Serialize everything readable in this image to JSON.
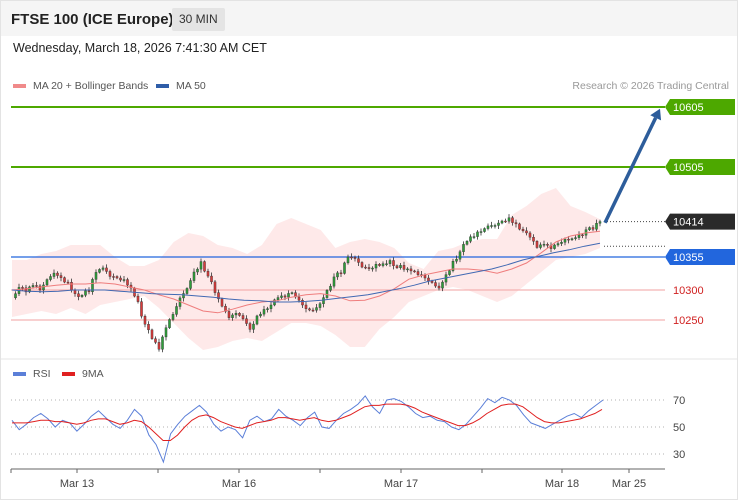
{
  "header": {
    "title": "FTSE 100 (ICE Europe)",
    "timeframe": "30 MIN"
  },
  "datetime": "Wednesday, March 18, 2026 7:41:30 AM CET",
  "legend": {
    "bollinger": "MA 20 + Bollinger Bands",
    "ma50": "MA 50",
    "rsi": "RSI",
    "rsi_ma": "9MA"
  },
  "credit": "Research © 2026 Trading Central",
  "colors": {
    "up": "#2e9e3a",
    "down": "#d83b3b",
    "bollinger_fill": "#fde2e2",
    "bollinger_line": "#ef7d7d",
    "ma50": "#4169b3",
    "target": "#4da800",
    "pivot": "#2266dd",
    "support": "#f1a2a2",
    "arrow": "#2d5d9b",
    "rsi": "#5b7fd8",
    "rsi_ma": "#e02020"
  },
  "chart_data": [
    {
      "type": "candlestick",
      "price_labels": [
        {
          "value": 10605,
          "label": "10605",
          "role": "target"
        },
        {
          "value": 10505,
          "label": "10505",
          "role": "target"
        },
        {
          "value": 10414,
          "label": "10414",
          "role": "last"
        },
        {
          "value": 10355,
          "label": "10355",
          "role": "pivot"
        },
        {
          "value": 10300,
          "label": "10300",
          "role": "support"
        },
        {
          "value": 10250,
          "label": "10250",
          "role": "support"
        }
      ],
      "ylim": [
        10200,
        10660
      ],
      "x_ticks": [
        "Mar 13",
        "Mar 16",
        "Mar 17",
        "Mar 18",
        "Mar 25"
      ],
      "close_path": [
        10290,
        10305,
        10295,
        10310,
        10300,
        10315,
        10330,
        10320,
        10310,
        10295,
        10290,
        10300,
        10330,
        10335,
        10325,
        10320,
        10315,
        10305,
        10280,
        10240,
        10220,
        10200,
        10240,
        10260,
        10285,
        10305,
        10330,
        10345,
        10325,
        10295,
        10270,
        10255,
        10260,
        10255,
        10235,
        10255,
        10270,
        10275,
        10285,
        10290,
        10295,
        10280,
        10270,
        10265,
        10280,
        10300,
        10320,
        10330,
        10355,
        10350,
        10340,
        10335,
        10340,
        10345,
        10348,
        10340,
        10335,
        10330,
        10328,
        10320,
        10310,
        10305,
        10325,
        10345,
        10365,
        10380,
        10392,
        10398,
        10405,
        10410,
        10415,
        10418,
        10412,
        10398,
        10385,
        10372,
        10375,
        10372,
        10378,
        10383,
        10388,
        10392,
        10398,
        10403,
        10414
      ],
      "bb_upper": [
        10350,
        10350,
        10360,
        10365,
        10375,
        10375,
        10375,
        10355,
        10340,
        10340,
        10350,
        10380,
        10395,
        10390,
        10375,
        10370,
        10360,
        10375,
        10410,
        10420,
        10410,
        10400,
        10370,
        10380,
        10385,
        10380,
        10370,
        10345,
        10335,
        10365,
        10370,
        10380,
        10385,
        10385,
        10425,
        10440,
        10460,
        10470,
        10440,
        10430,
        10418
      ],
      "bb_lower": [
        10255,
        10260,
        10265,
        10260,
        10270,
        10260,
        10275,
        10280,
        10285,
        10290,
        10270,
        10245,
        10220,
        10200,
        10205,
        10215,
        10220,
        10215,
        10230,
        10245,
        10245,
        10240,
        10225,
        10205,
        10205,
        10235,
        10255,
        10280,
        10290,
        10300,
        10305,
        10300,
        10290,
        10280,
        10290,
        10310,
        10330,
        10350,
        10355,
        10360,
        10370
      ],
      "ma20": [
        10300,
        10302,
        10305,
        10308,
        10310,
        10310,
        10312,
        10310,
        10305,
        10300,
        10292,
        10285,
        10275,
        10265,
        10262,
        10268,
        10275,
        10280,
        10282,
        10288,
        10292,
        10294,
        10290,
        10282,
        10283,
        10290,
        10302,
        10318,
        10325,
        10330,
        10335,
        10335,
        10333,
        10328,
        10335,
        10345,
        10362,
        10380,
        10390,
        10395,
        10398
      ],
      "ma50": [
        10300,
        10298,
        10297,
        10298,
        10300,
        10300,
        10300,
        10298,
        10296,
        10294,
        10293,
        10292,
        10290,
        10288,
        10285,
        10283,
        10282,
        10280,
        10280,
        10281,
        10283,
        10286,
        10289,
        10292,
        10297,
        10302,
        10308,
        10315,
        10320,
        10325,
        10330,
        10335,
        10342,
        10350,
        10356,
        10362,
        10367,
        10373,
        10378
      ],
      "arrow": {
        "from": 10412,
        "to": 10602
      }
    },
    {
      "type": "line",
      "name": "RSI",
      "ylim": [
        20,
        80
      ],
      "y_ticks": [
        70,
        50,
        30
      ],
      "rsi": [
        55,
        48,
        52,
        57,
        60,
        56,
        50,
        55,
        53,
        47,
        52,
        58,
        62,
        57,
        52,
        49,
        55,
        63,
        58,
        44,
        37,
        24,
        45,
        52,
        58,
        62,
        66,
        61,
        52,
        47,
        50,
        48,
        42,
        55,
        58,
        54,
        56,
        63,
        58,
        55,
        51,
        57,
        61,
        50,
        49,
        55,
        60,
        63,
        67,
        73,
        65,
        60,
        70,
        71,
        69,
        65,
        60,
        57,
        58,
        55,
        54,
        50,
        48,
        52,
        58,
        64,
        71,
        68,
        72,
        70,
        66,
        59,
        53,
        51,
        49,
        52,
        55,
        58,
        60,
        57,
        62,
        66,
        70
      ],
      "ma9": [
        53,
        53,
        53,
        54,
        55,
        55,
        54,
        54,
        53,
        52,
        53,
        55,
        56,
        56,
        54,
        52,
        53,
        55,
        54,
        50,
        45,
        40,
        40,
        44,
        50,
        55,
        58,
        59,
        57,
        54,
        52,
        50,
        49,
        51,
        53,
        54,
        55,
        57,
        57,
        56,
        55,
        56,
        57,
        55,
        54,
        55,
        57,
        59,
        62,
        65,
        66,
        66,
        67,
        67,
        67,
        66,
        64,
        61,
        59,
        57,
        55,
        53,
        51,
        51,
        53,
        56,
        60,
        63,
        66,
        67,
        67,
        65,
        61,
        57,
        54,
        53,
        53,
        54,
        55,
        56,
        58,
        60,
        63
      ]
    }
  ]
}
